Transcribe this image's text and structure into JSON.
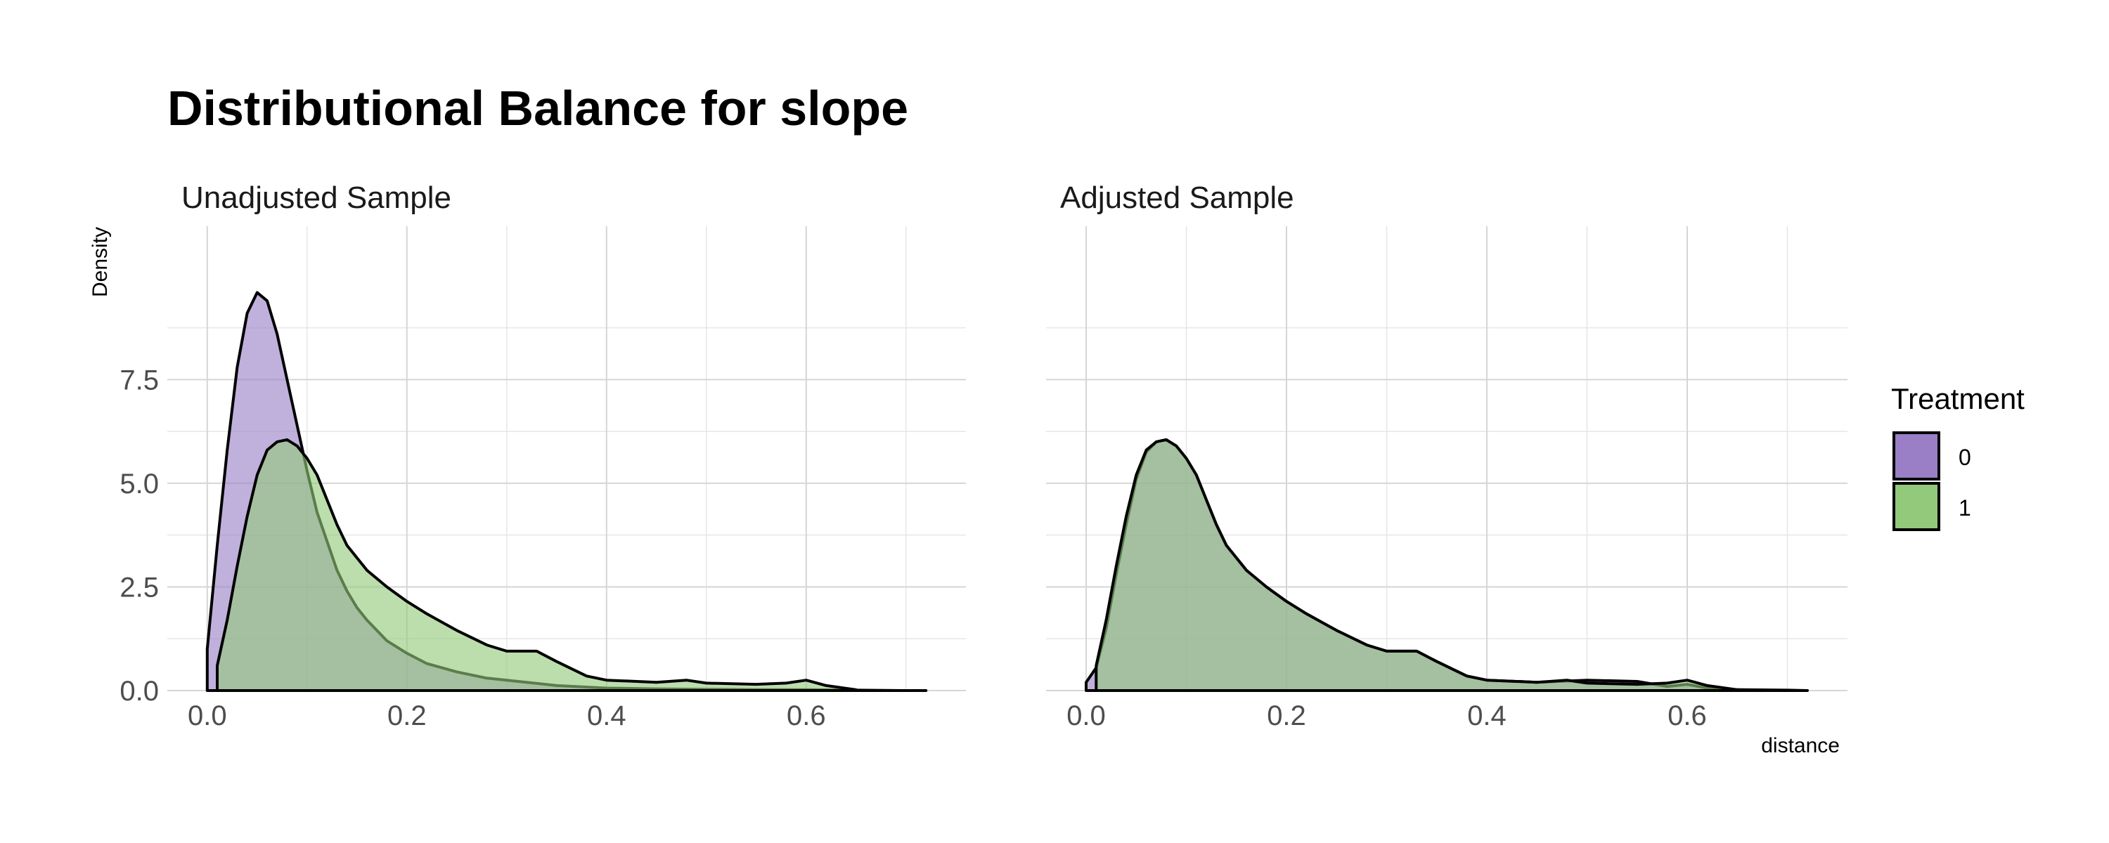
{
  "colors": {
    "treatment_0": "#9a7fc6",
    "treatment_1": "#93c97a"
  },
  "chart_data": {
    "type": "area",
    "title": "Distributional Balance for slope",
    "ylabel": "Density",
    "xlabel": "distance",
    "legend": {
      "title": "Treatment",
      "position": "right",
      "entries": [
        {
          "label": "0",
          "color": "#9a7fc6"
        },
        {
          "label": "1",
          "color": "#93c97a"
        }
      ]
    },
    "grid": true,
    "xlim": [
      -0.04,
      0.76
    ],
    "ylim": [
      0,
      11.2
    ],
    "x_ticks": [
      0.0,
      0.2,
      0.4,
      0.6
    ],
    "x_tick_labels": [
      "0.0",
      "0.2",
      "0.4",
      "0.6"
    ],
    "y_ticks": [
      0,
      2.5,
      5.0,
      7.5
    ],
    "y_tick_labels": [
      "0.0",
      "2.5",
      "5.0",
      "7.5"
    ],
    "panels": [
      {
        "title": "Unadjusted Sample",
        "series": [
          {
            "name": "0",
            "x": [
              0.0,
              0.0,
              0.01,
              0.02,
              0.03,
              0.04,
              0.05,
              0.06,
              0.07,
              0.08,
              0.09,
              0.1,
              0.11,
              0.12,
              0.13,
              0.14,
              0.15,
              0.16,
              0.18,
              0.2,
              0.22,
              0.25,
              0.28,
              0.3,
              0.35,
              0.4,
              0.45,
              0.5,
              0.55,
              0.6,
              0.65,
              0.7,
              0.72
            ],
            "y": [
              0.0,
              1.0,
              3.5,
              5.8,
              7.8,
              9.1,
              9.6,
              9.4,
              8.6,
              7.5,
              6.4,
              5.3,
              4.3,
              3.6,
              2.9,
              2.4,
              2.0,
              1.7,
              1.2,
              0.9,
              0.65,
              0.45,
              0.3,
              0.25,
              0.12,
              0.06,
              0.04,
              0.03,
              0.02,
              0.02,
              0.01,
              0.0,
              0.0
            ]
          },
          {
            "name": "1",
            "x": [
              0.01,
              0.01,
              0.02,
              0.03,
              0.04,
              0.05,
              0.06,
              0.07,
              0.08,
              0.09,
              0.1,
              0.11,
              0.12,
              0.13,
              0.14,
              0.15,
              0.16,
              0.18,
              0.2,
              0.22,
              0.25,
              0.28,
              0.3,
              0.33,
              0.35,
              0.38,
              0.4,
              0.45,
              0.48,
              0.5,
              0.55,
              0.58,
              0.6,
              0.62,
              0.65
            ],
            "y": [
              0.0,
              0.6,
              1.7,
              3.0,
              4.2,
              5.2,
              5.8,
              6.0,
              6.05,
              5.9,
              5.6,
              5.2,
              4.6,
              4.0,
              3.5,
              3.2,
              2.9,
              2.5,
              2.15,
              1.85,
              1.45,
              1.1,
              0.95,
              0.95,
              0.7,
              0.35,
              0.25,
              0.2,
              0.25,
              0.18,
              0.15,
              0.18,
              0.25,
              0.12,
              0.02
            ]
          }
        ]
      },
      {
        "title": "Adjusted Sample",
        "series": [
          {
            "name": "0",
            "x": [
              0.0,
              0.0,
              0.01,
              0.02,
              0.03,
              0.04,
              0.05,
              0.06,
              0.07,
              0.08,
              0.09,
              0.1,
              0.11,
              0.12,
              0.13,
              0.14,
              0.15,
              0.16,
              0.18,
              0.2,
              0.22,
              0.25,
              0.28,
              0.3,
              0.33,
              0.35,
              0.38,
              0.4,
              0.45,
              0.5,
              0.55,
              0.58,
              0.6,
              0.62,
              0.65,
              0.7,
              0.72
            ],
            "y": [
              0.0,
              0.2,
              0.55,
              1.5,
              2.8,
              4.0,
              5.1,
              5.75,
              6.0,
              6.05,
              5.9,
              5.6,
              5.2,
              4.6,
              4.0,
              3.5,
              3.2,
              2.9,
              2.5,
              2.15,
              1.85,
              1.45,
              1.1,
              0.95,
              0.95,
              0.7,
              0.35,
              0.25,
              0.2,
              0.25,
              0.22,
              0.1,
              0.15,
              0.06,
              0.02,
              0.01,
              0.0
            ]
          },
          {
            "name": "1",
            "x": [
              0.01,
              0.01,
              0.02,
              0.03,
              0.04,
              0.05,
              0.06,
              0.07,
              0.08,
              0.09,
              0.1,
              0.11,
              0.12,
              0.13,
              0.14,
              0.15,
              0.16,
              0.18,
              0.2,
              0.22,
              0.25,
              0.28,
              0.3,
              0.33,
              0.35,
              0.38,
              0.4,
              0.45,
              0.48,
              0.5,
              0.55,
              0.58,
              0.6,
              0.62,
              0.65,
              0.7
            ],
            "y": [
              0.0,
              0.6,
              1.7,
              3.0,
              4.2,
              5.2,
              5.8,
              6.0,
              6.05,
              5.9,
              5.6,
              5.2,
              4.6,
              4.0,
              3.5,
              3.2,
              2.9,
              2.5,
              2.15,
              1.85,
              1.45,
              1.1,
              0.95,
              0.95,
              0.7,
              0.35,
              0.25,
              0.2,
              0.25,
              0.18,
              0.15,
              0.18,
              0.25,
              0.12,
              0.02,
              0.0
            ]
          }
        ]
      }
    ]
  }
}
